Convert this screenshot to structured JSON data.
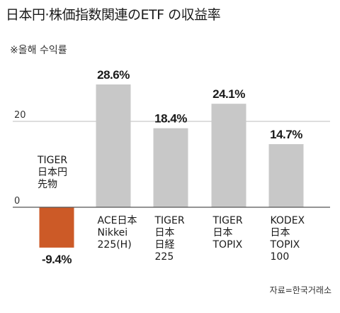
{
  "title": "日本円·株価指数関連のETF の収益率",
  "subtitle": "※올해 수익률",
  "source": "자료=한국거래소",
  "colors": {
    "positive_bar": "#c8c8c8",
    "negative_bar": "#cc5a27",
    "axis": "#555555",
    "grid": "#bdbdbd"
  },
  "chart_data": {
    "type": "bar",
    "title": "日本円·株価指数関連のETF の収益率",
    "subtitle": "※올해 수익률",
    "categories": [
      [
        "TIGER",
        "日本円",
        "先物"
      ],
      [
        "ACE日本",
        "Nikkei",
        "225(H)"
      ],
      [
        "TIGER",
        "日本",
        "日経",
        "225"
      ],
      [
        "TIGER",
        "日本",
        "TOPIX"
      ],
      [
        "KODEX",
        "日本",
        "TOPIX",
        "100"
      ]
    ],
    "values": [
      -9.4,
      28.6,
      18.4,
      24.1,
      14.7
    ],
    "value_labels": [
      "-9.4%",
      "28.6%",
      "18.4%",
      "24.1%",
      "14.7%"
    ],
    "yticks": [
      0,
      20
    ],
    "ylim": [
      -10,
      30
    ],
    "grid": true,
    "xlabel": "",
    "ylabel": ""
  }
}
